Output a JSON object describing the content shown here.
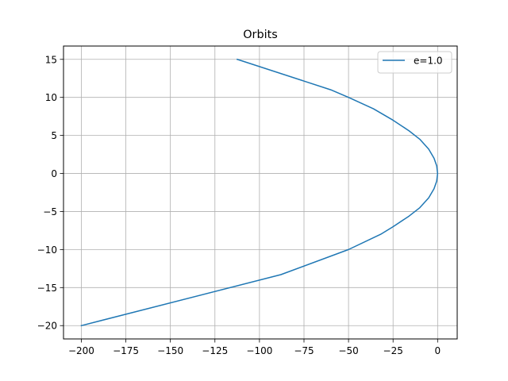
{
  "chart_data": {
    "type": "line",
    "title": "Orbits",
    "xlabel": "",
    "ylabel": "",
    "xlim": [
      -210,
      11
    ],
    "ylim": [
      -21.75,
      16.75
    ],
    "xticks": [
      -200,
      -175,
      -150,
      -125,
      -100,
      -75,
      -50,
      -25,
      0
    ],
    "yticks": [
      -20,
      -15,
      -10,
      -5,
      0,
      5,
      10,
      15
    ],
    "xtick_labels": [
      "−200",
      "−175",
      "−150",
      "−125",
      "−100",
      "−75",
      "−50",
      "−25",
      "0"
    ],
    "ytick_labels": [
      "−20",
      "−15",
      "−10",
      "−5",
      "0",
      "5",
      "10",
      "15"
    ],
    "grid": true,
    "legend_position": "top-right",
    "series": [
      {
        "name": "e=1.0",
        "color": "#1f77b4",
        "x": [
          -112.5,
          -60,
          -50,
          -36,
          -25,
          -16,
          -10,
          -5,
          -2,
          -0.5,
          0,
          -0.5,
          -2,
          -5,
          -10,
          -16,
          -25,
          -32,
          -50,
          -88,
          -200
        ],
        "y": [
          15,
          11,
          10,
          8.5,
          7,
          5.6,
          4.5,
          3.2,
          2,
          1,
          0,
          -1,
          -2,
          -3.2,
          -4.5,
          -5.6,
          -7,
          -8,
          -10,
          -13.3,
          -20
        ]
      }
    ]
  }
}
